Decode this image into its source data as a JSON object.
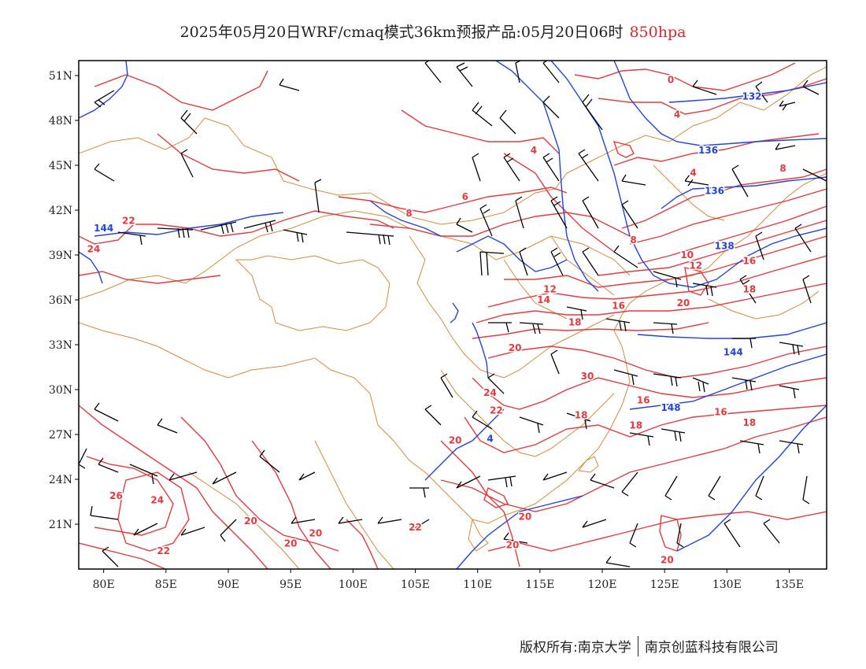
{
  "title": {
    "main": "2025年05月20日WRF/cmaq模式36km预报产品:05月20日06时",
    "level": "850hpa"
  },
  "colors": {
    "temperature": "#e8383d",
    "geopotential": "#2244dd",
    "border": "#d8893a",
    "wind": "#000000",
    "frame": "#000000"
  },
  "axes": {
    "lon_range": [
      78,
      138
    ],
    "lat_range": [
      18,
      52
    ],
    "lat_ticks": [
      {
        "value": 51,
        "label": "51N"
      },
      {
        "value": 48,
        "label": "48N"
      },
      {
        "value": 45,
        "label": "45N"
      },
      {
        "value": 42,
        "label": "42N"
      },
      {
        "value": 39,
        "label": "39N"
      },
      {
        "value": 36,
        "label": "36N"
      },
      {
        "value": 33,
        "label": "33N"
      },
      {
        "value": 30,
        "label": "30N"
      },
      {
        "value": 27,
        "label": "27N"
      },
      {
        "value": 24,
        "label": "24N"
      },
      {
        "value": 21,
        "label": "21N"
      }
    ],
    "lon_ticks": [
      {
        "value": 80,
        "label": "80E"
      },
      {
        "value": 85,
        "label": "85E"
      },
      {
        "value": 90,
        "label": "90E"
      },
      {
        "value": 95,
        "label": "95E"
      },
      {
        "value": 100,
        "label": "100E"
      },
      {
        "value": 105,
        "label": "105E"
      },
      {
        "value": 110,
        "label": "110E"
      },
      {
        "value": 115,
        "label": "115E"
      },
      {
        "value": 120,
        "label": "120E"
      },
      {
        "value": 125,
        "label": "125E"
      },
      {
        "value": 130,
        "label": "130E"
      },
      {
        "value": 135,
        "label": "135E"
      }
    ]
  },
  "contour_labels": {
    "temperature": [
      {
        "text": "0",
        "lon": 125.5,
        "lat": 50.7
      },
      {
        "text": "4",
        "lon": 126.0,
        "lat": 48.4
      },
      {
        "text": "4",
        "lon": 114.5,
        "lat": 46.0
      },
      {
        "text": "4",
        "lon": 127.3,
        "lat": 44.5
      },
      {
        "text": "8",
        "lon": 134.5,
        "lat": 44.8
      },
      {
        "text": "6",
        "lon": 109.0,
        "lat": 42.9
      },
      {
        "text": "8",
        "lon": 104.5,
        "lat": 41.8
      },
      {
        "text": "8",
        "lon": 122.5,
        "lat": 40.0
      },
      {
        "text": "10",
        "lon": 126.8,
        "lat": 39.0
      },
      {
        "text": "12",
        "lon": 127.5,
        "lat": 38.3
      },
      {
        "text": "12",
        "lon": 115.8,
        "lat": 36.7
      },
      {
        "text": "14",
        "lon": 115.3,
        "lat": 36.0
      },
      {
        "text": "16",
        "lon": 131.8,
        "lat": 38.6
      },
      {
        "text": "16",
        "lon": 121.3,
        "lat": 35.6
      },
      {
        "text": "18",
        "lon": 131.8,
        "lat": 36.7
      },
      {
        "text": "18",
        "lon": 117.8,
        "lat": 34.5
      },
      {
        "text": "20",
        "lon": 126.5,
        "lat": 35.8
      },
      {
        "text": "20",
        "lon": 113.0,
        "lat": 32.8
      },
      {
        "text": "22",
        "lon": 82.0,
        "lat": 41.3
      },
      {
        "text": "24",
        "lon": 79.2,
        "lat": 39.4
      },
      {
        "text": "30",
        "lon": 118.8,
        "lat": 30.9
      },
      {
        "text": "24",
        "lon": 111.0,
        "lat": 29.8
      },
      {
        "text": "22",
        "lon": 111.5,
        "lat": 28.6
      },
      {
        "text": "16",
        "lon": 123.3,
        "lat": 29.3
      },
      {
        "text": "18",
        "lon": 118.3,
        "lat": 28.3
      },
      {
        "text": "16",
        "lon": 129.5,
        "lat": 28.5
      },
      {
        "text": "18",
        "lon": 122.7,
        "lat": 27.6
      },
      {
        "text": "18",
        "lon": 131.8,
        "lat": 27.8
      },
      {
        "text": "20",
        "lon": 108.2,
        "lat": 26.6
      },
      {
        "text": "26",
        "lon": 81.0,
        "lat": 22.9
      },
      {
        "text": "24",
        "lon": 84.3,
        "lat": 22.6
      },
      {
        "text": "20",
        "lon": 113.8,
        "lat": 21.5
      },
      {
        "text": "20",
        "lon": 91.8,
        "lat": 21.2
      },
      {
        "text": "20",
        "lon": 97.0,
        "lat": 20.4
      },
      {
        "text": "22",
        "lon": 105.0,
        "lat": 20.8
      },
      {
        "text": "20",
        "lon": 95.0,
        "lat": 19.7
      },
      {
        "text": "22",
        "lon": 84.8,
        "lat": 19.2
      },
      {
        "text": "20",
        "lon": 112.8,
        "lat": 19.6
      },
      {
        "text": "20",
        "lon": 125.2,
        "lat": 18.6
      }
    ],
    "geopotential": [
      {
        "text": "132",
        "lon": 132.0,
        "lat": 49.6
      },
      {
        "text": "136",
        "lon": 128.5,
        "lat": 46.0
      },
      {
        "text": "136",
        "lon": 129.0,
        "lat": 43.3
      },
      {
        "text": "138",
        "lon": 129.8,
        "lat": 39.6
      },
      {
        "text": "144",
        "lon": 80.0,
        "lat": 40.8
      },
      {
        "text": "144",
        "lon": 130.5,
        "lat": 32.5
      },
      {
        "text": "148",
        "lon": 125.5,
        "lat": 28.8
      },
      {
        "text": "4",
        "lon": 111.0,
        "lat": 26.7
      }
    ]
  },
  "footer": {
    "left": "版权所有:南京大学",
    "right": "南京创蓝科技有限公司"
  }
}
